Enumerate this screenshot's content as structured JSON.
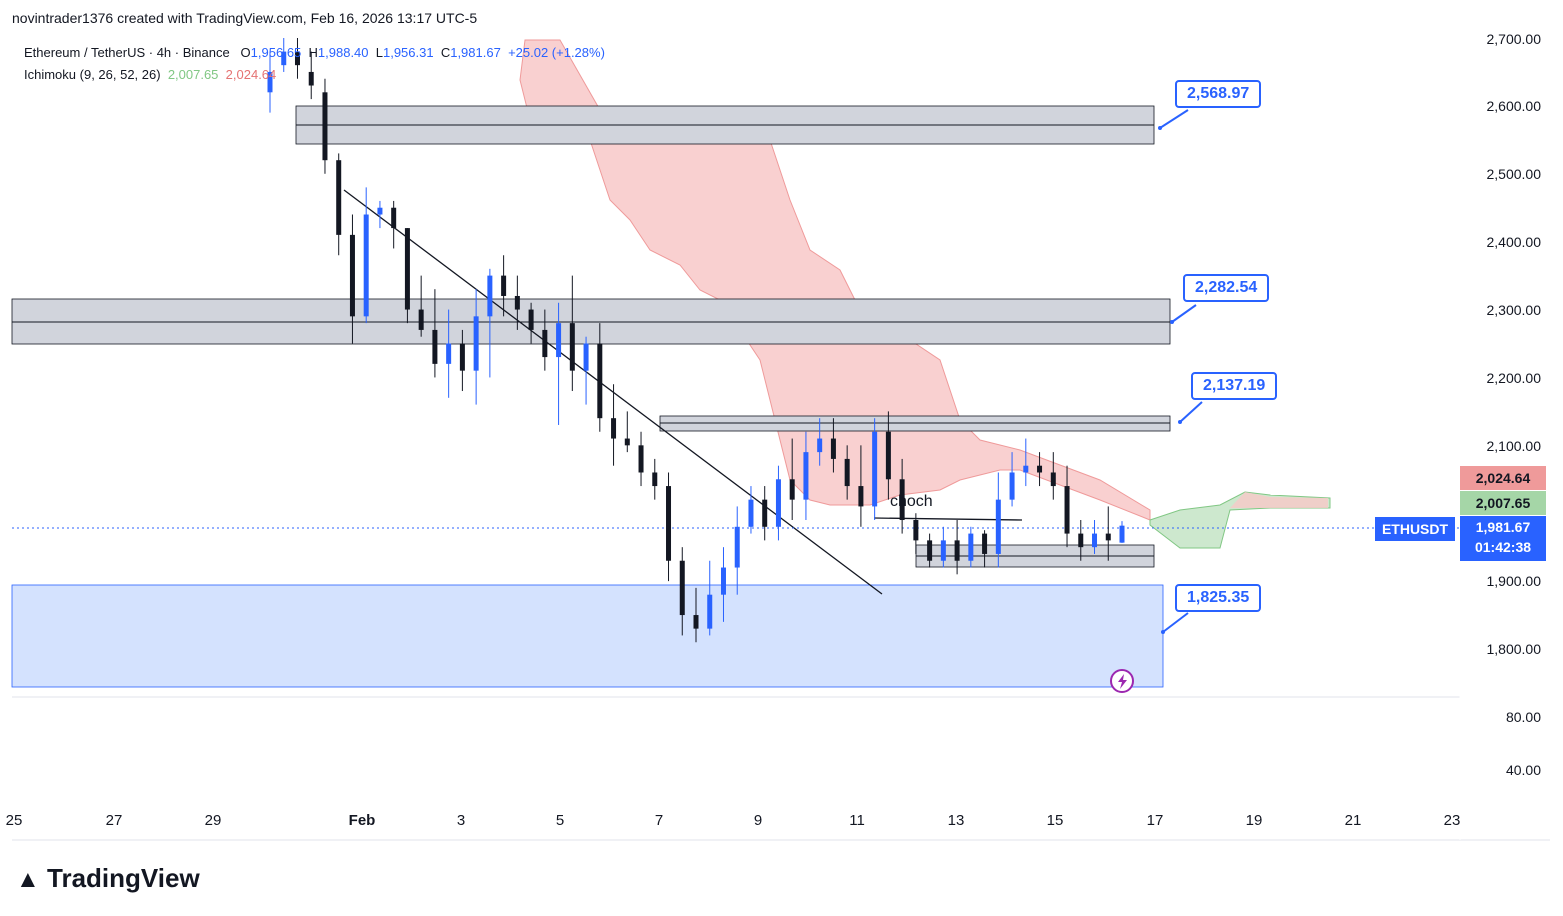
{
  "header": {
    "author_line": "novintrader1376 created with TradingView.com, Feb 16, 2026 13:17 UTC-5"
  },
  "legend": {
    "symbol": "Ethereum / TetherUS · 4h · Binance",
    "open_label": "O",
    "open": "1,956.65",
    "high_label": "H",
    "high": "1,988.40",
    "low_label": "L",
    "low": "1,956.31",
    "close_label": "C",
    "close": "1,981.67",
    "change": "+25.02 (+1.28%)",
    "indicator": "Ichimoku (9, 26, 52, 26)",
    "ind_val1": "2,007.65",
    "ind_val2": "2,024.64"
  },
  "price_axis": {
    "ticks": [
      "2,700.00",
      "2,600.00",
      "2,500.00",
      "2,400.00",
      "2,300.00",
      "2,200.00",
      "2,100.00",
      "1,900.00",
      "1,800.00"
    ],
    "volume_ticks": [
      "80.00",
      "40.00"
    ]
  },
  "time_axis": {
    "ticks": [
      "25",
      "27",
      "29",
      "Feb",
      "3",
      "5",
      "7",
      "9",
      "11",
      "13",
      "15",
      "17",
      "19",
      "21",
      "23"
    ]
  },
  "badges": {
    "ichimoku_top": "2,024.64",
    "ichimoku_bottom": "2,007.65",
    "symbol": "ETHUSDT",
    "last_price": "1,981.67",
    "countdown": "01:42:38",
    "colors": {
      "red": "#ef9a9a",
      "green": "#a5d6a7",
      "blue": "#2962ff"
    }
  },
  "annotations": {
    "choch": "choch",
    "levels": [
      "2,568.97",
      "2,282.54",
      "2,137.19",
      "1,825.35"
    ]
  },
  "branding": {
    "logo": "TradingView"
  },
  "chart_data": {
    "type": "candlestick",
    "title": "Ethereum / TetherUS · 4h · Binance",
    "ylim": [
      1740,
      2700
    ],
    "x_dates": [
      "Jan 25",
      "Feb 23"
    ],
    "levels": [
      2568.97,
      2282.54,
      2137.19,
      1825.35
    ],
    "zones": [
      {
        "name": "supply-zone-top",
        "low": 2545,
        "high": 2600
      },
      {
        "name": "supply-zone-mid",
        "low": 2250,
        "high": 2315
      },
      {
        "name": "supply-zone-low",
        "low": 2120,
        "high": 2145
      },
      {
        "name": "support-zone",
        "low": 1925,
        "high": 1955
      },
      {
        "name": "demand-zone",
        "low": 1745,
        "high": 1895
      }
    ],
    "candles": [
      [
        2620,
        2680,
        2590,
        2650
      ],
      [
        2660,
        2700,
        2650,
        2680
      ],
      [
        2680,
        2700,
        2640,
        2660
      ],
      [
        2650,
        2680,
        2610,
        2630
      ],
      [
        2620,
        2640,
        2500,
        2520
      ],
      [
        2520,
        2530,
        2380,
        2410
      ],
      [
        2410,
        2440,
        2250,
        2290
      ],
      [
        2290,
        2480,
        2280,
        2440
      ],
      [
        2440,
        2460,
        2420,
        2450
      ],
      [
        2450,
        2460,
        2390,
        2420
      ],
      [
        2420,
        2420,
        2280,
        2300
      ],
      [
        2300,
        2350,
        2260,
        2270
      ],
      [
        2270,
        2330,
        2200,
        2220
      ],
      [
        2220,
        2300,
        2170,
        2250
      ],
      [
        2250,
        2270,
        2180,
        2210
      ],
      [
        2210,
        2330,
        2160,
        2290
      ],
      [
        2290,
        2360,
        2200,
        2350
      ],
      [
        2350,
        2380,
        2290,
        2320
      ],
      [
        2320,
        2350,
        2270,
        2300
      ],
      [
        2300,
        2310,
        2250,
        2270
      ],
      [
        2270,
        2300,
        2210,
        2230
      ],
      [
        2230,
        2310,
        2130,
        2280
      ],
      [
        2280,
        2350,
        2180,
        2210
      ],
      [
        2210,
        2260,
        2160,
        2250
      ],
      [
        2250,
        2280,
        2120,
        2140
      ],
      [
        2140,
        2190,
        2070,
        2110
      ],
      [
        2110,
        2150,
        2090,
        2100
      ],
      [
        2100,
        2120,
        2040,
        2060
      ],
      [
        2060,
        2080,
        2020,
        2040
      ],
      [
        2040,
        2060,
        1900,
        1930
      ],
      [
        1930,
        1950,
        1820,
        1850
      ],
      [
        1850,
        1890,
        1810,
        1830
      ],
      [
        1830,
        1930,
        1820,
        1880
      ],
      [
        1880,
        1950,
        1840,
        1920
      ],
      [
        1920,
        2010,
        1880,
        1980
      ],
      [
        1980,
        2040,
        1970,
        2020
      ],
      [
        2020,
        2040,
        1960,
        1980
      ],
      [
        1980,
        2070,
        1960,
        2050
      ],
      [
        2050,
        2110,
        1990,
        2020
      ],
      [
        2020,
        2120,
        1990,
        2090
      ],
      [
        2090,
        2140,
        2070,
        2110
      ],
      [
        2110,
        2140,
        2060,
        2080
      ],
      [
        2080,
        2100,
        2020,
        2040
      ],
      [
        2040,
        2100,
        1980,
        2010
      ],
      [
        2010,
        2140,
        1990,
        2120
      ],
      [
        2120,
        2150,
        2020,
        2050
      ],
      [
        2050,
        2080,
        1970,
        1990
      ],
      [
        1990,
        2000,
        1940,
        1960
      ],
      [
        1960,
        1970,
        1920,
        1930
      ],
      [
        1930,
        1980,
        1920,
        1960
      ],
      [
        1960,
        1990,
        1910,
        1930
      ],
      [
        1930,
        1980,
        1920,
        1970
      ],
      [
        1970,
        1975,
        1920,
        1940
      ],
      [
        1940,
        2060,
        1920,
        2020
      ],
      [
        2020,
        2090,
        2010,
        2060
      ],
      [
        2060,
        2110,
        2040,
        2070
      ],
      [
        2070,
        2090,
        2040,
        2060
      ],
      [
        2060,
        2090,
        2020,
        2040
      ],
      [
        2040,
        2070,
        1950,
        1970
      ],
      [
        1970,
        1990,
        1930,
        1950
      ],
      [
        1950,
        1990,
        1940,
        1970
      ],
      [
        1970,
        2010,
        1930,
        1960
      ],
      [
        1956.65,
        1988.4,
        1956.31,
        1981.67
      ]
    ]
  }
}
